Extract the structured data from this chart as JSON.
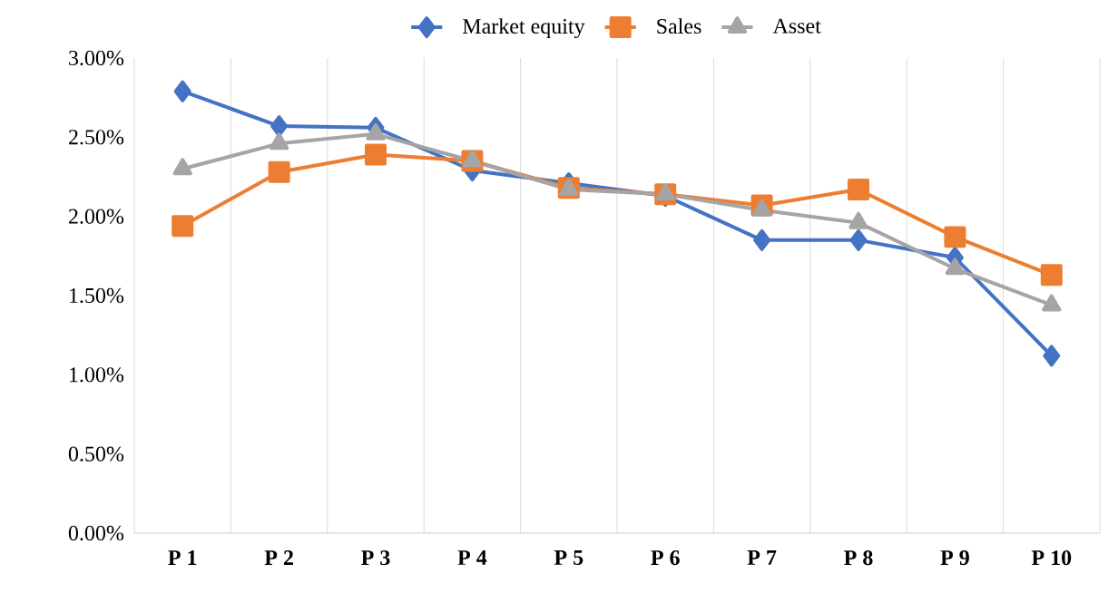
{
  "chart_data": {
    "type": "line",
    "categories": [
      "P 1",
      "P 2",
      "P 3",
      "P 4",
      "P 5",
      "P 6",
      "P 7",
      "P 8",
      "P 9",
      "P 10"
    ],
    "series": [
      {
        "name": "Market equity",
        "color": "#4472c4",
        "marker": "diamond",
        "values": [
          2.79,
          2.57,
          2.56,
          2.29,
          2.21,
          2.13,
          1.85,
          1.85,
          1.74,
          1.12
        ]
      },
      {
        "name": "Sales",
        "color": "#ed7d31",
        "marker": "square",
        "values": [
          1.94,
          2.28,
          2.39,
          2.35,
          2.18,
          2.14,
          2.07,
          2.17,
          1.87,
          1.63
        ]
      },
      {
        "name": "Asset",
        "color": "#a5a5a5",
        "marker": "triangle",
        "values": [
          2.3,
          2.46,
          2.52,
          2.35,
          2.17,
          2.14,
          2.04,
          1.96,
          1.67,
          1.44
        ]
      }
    ],
    "ylim": [
      0,
      3
    ],
    "yticks": [
      {
        "value": 0,
        "label": "0.00%"
      },
      {
        "value": 0.5,
        "label": "0.50%"
      },
      {
        "value": 1,
        "label": "1.00%"
      },
      {
        "value": 1.5,
        "label": "1.50%"
      },
      {
        "value": 2,
        "label": "2.00%"
      },
      {
        "value": 2.5,
        "label": "2.50%"
      },
      {
        "value": 3,
        "label": "3.00%"
      }
    ],
    "grid": "x",
    "legend": "top",
    "line_style": "solid"
  }
}
